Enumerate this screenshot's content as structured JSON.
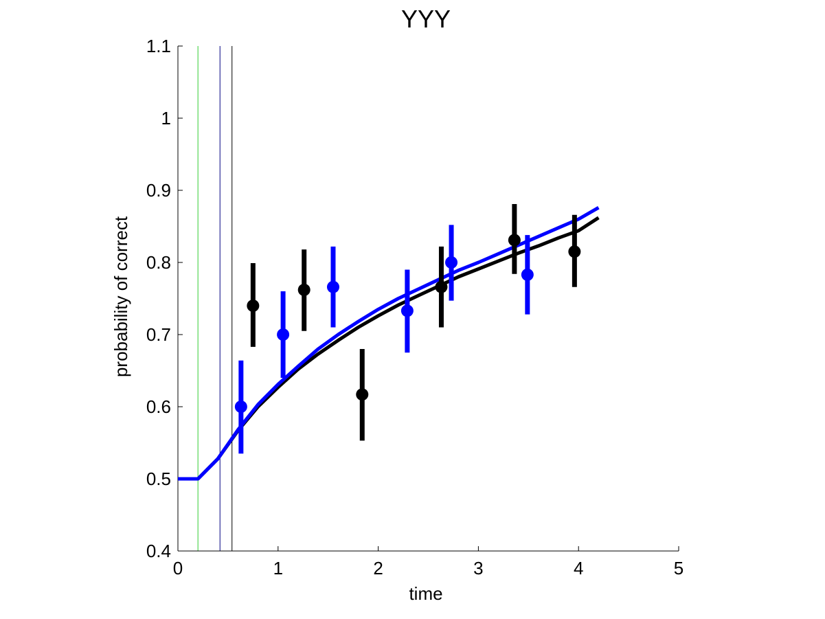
{
  "chart_data": {
    "type": "scatter",
    "title": "YYY",
    "xlabel": "time",
    "ylabel": "probability of correct",
    "xlim": [
      0,
      5
    ],
    "ylim": [
      0.4,
      1.1
    ],
    "x_ticks": [
      0,
      1,
      2,
      3,
      4,
      5
    ],
    "y_ticks": [
      0.4,
      0.5,
      0.6,
      0.7,
      0.8,
      0.9,
      1,
      1.1
    ],
    "x_tick_labels": [
      "0",
      "1",
      "2",
      "3",
      "4",
      "5"
    ],
    "y_tick_labels": [
      "0.4",
      "0.5",
      "0.6",
      "0.7",
      "0.8",
      "0.9",
      "1",
      "1.1"
    ],
    "grid": false,
    "vertical_lines": [
      {
        "x": 0.2,
        "color": "#33cc33"
      },
      {
        "x": 0.42,
        "color": "#000080"
      },
      {
        "x": 0.54,
        "color": "#000000"
      }
    ],
    "series": [
      {
        "color": "#000000",
        "points": [
          {
            "x": 0.75,
            "y": 0.74,
            "err_low": 0.683,
            "err_high": 0.799
          },
          {
            "x": 1.26,
            "y": 0.762,
            "err_low": 0.705,
            "err_high": 0.818
          },
          {
            "x": 1.84,
            "y": 0.617,
            "err_low": 0.553,
            "err_high": 0.68
          },
          {
            "x": 2.63,
            "y": 0.766,
            "err_low": 0.71,
            "err_high": 0.822
          },
          {
            "x": 3.36,
            "y": 0.831,
            "err_low": 0.784,
            "err_high": 0.881
          },
          {
            "x": 3.96,
            "y": 0.815,
            "err_low": 0.766,
            "err_high": 0.866
          }
        ],
        "curve": [
          [
            0,
            0.5
          ],
          [
            0.2,
            0.5
          ],
          [
            0.4,
            0.528
          ],
          [
            0.6,
            0.567
          ],
          [
            0.8,
            0.6
          ],
          [
            1.0,
            0.627
          ],
          [
            1.2,
            0.652
          ],
          [
            1.4,
            0.673
          ],
          [
            1.6,
            0.692
          ],
          [
            1.8,
            0.71
          ],
          [
            2.0,
            0.726
          ],
          [
            2.2,
            0.741
          ],
          [
            2.4,
            0.754
          ],
          [
            2.6,
            0.767
          ],
          [
            2.8,
            0.78
          ],
          [
            3.0,
            0.791
          ],
          [
            3.2,
            0.802
          ],
          [
            3.4,
            0.813
          ],
          [
            3.6,
            0.823
          ],
          [
            3.8,
            0.834
          ],
          [
            4.0,
            0.844
          ],
          [
            4.2,
            0.862
          ]
        ]
      },
      {
        "color": "#0000ff",
        "points": [
          {
            "x": 0.63,
            "y": 0.6,
            "err_low": 0.535,
            "err_high": 0.664
          },
          {
            "x": 1.05,
            "y": 0.7,
            "err_low": 0.64,
            "err_high": 0.76
          },
          {
            "x": 1.55,
            "y": 0.766,
            "err_low": 0.71,
            "err_high": 0.822
          },
          {
            "x": 2.29,
            "y": 0.733,
            "err_low": 0.675,
            "err_high": 0.79
          },
          {
            "x": 2.73,
            "y": 0.8,
            "err_low": 0.747,
            "err_high": 0.852
          },
          {
            "x": 3.49,
            "y": 0.783,
            "err_low": 0.728,
            "err_high": 0.838
          }
        ],
        "curve": [
          [
            0,
            0.5
          ],
          [
            0.2,
            0.5
          ],
          [
            0.4,
            0.528
          ],
          [
            0.6,
            0.568
          ],
          [
            0.8,
            0.603
          ],
          [
            1.0,
            0.631
          ],
          [
            1.2,
            0.656
          ],
          [
            1.4,
            0.68
          ],
          [
            1.6,
            0.7
          ],
          [
            1.8,
            0.718
          ],
          [
            2.0,
            0.735
          ],
          [
            2.2,
            0.75
          ],
          [
            2.4,
            0.763
          ],
          [
            2.6,
            0.776
          ],
          [
            2.8,
            0.789
          ],
          [
            3.0,
            0.8
          ],
          [
            3.2,
            0.812
          ],
          [
            3.4,
            0.824
          ],
          [
            3.6,
            0.836
          ],
          [
            3.8,
            0.848
          ],
          [
            4.0,
            0.86
          ],
          [
            4.2,
            0.876
          ]
        ]
      }
    ]
  }
}
